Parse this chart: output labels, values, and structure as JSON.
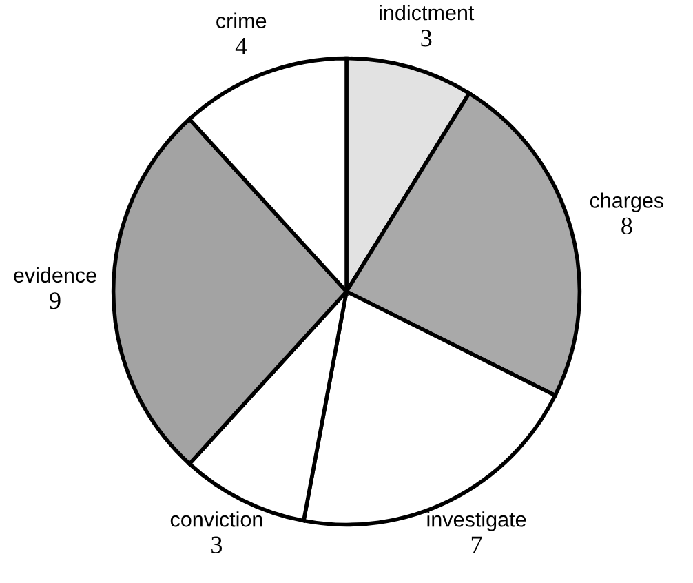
{
  "chart_data": {
    "type": "pie",
    "categories": [
      "indictment",
      "charges",
      "investigate",
      "conviction",
      "evidence",
      "crime"
    ],
    "values": [
      3,
      8,
      7,
      3,
      9,
      4
    ],
    "colors": [
      "#e2e2e2",
      "#a9a9a9",
      "#ffffff",
      "#ffffff",
      "#a3a3a3",
      "#ffffff"
    ],
    "data_labels": true,
    "legend": false
  }
}
